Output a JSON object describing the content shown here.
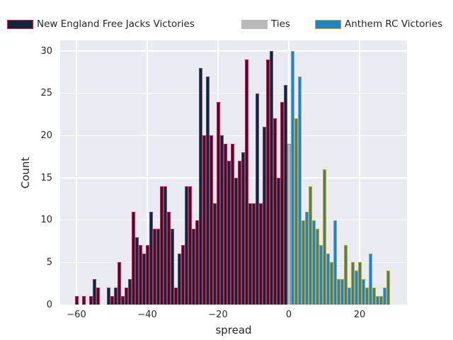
{
  "legend": {
    "items": [
      {
        "label": "New England Free Jacks Victories",
        "fill": "#16233c",
        "edge": "#c22b52"
      },
      {
        "label": "Ties",
        "fill": "#b9b9b9",
        "edge": "#b9b9b9"
      },
      {
        "label": "Anthem RC Victories",
        "fill": "#2183c2",
        "edge": "#d4a71e"
      }
    ]
  },
  "axes": {
    "xlabel": "spread",
    "ylabel": "Count",
    "x_ticks": [
      -60,
      -40,
      -20,
      0,
      20
    ],
    "y_ticks": [
      0,
      5,
      10,
      15,
      20,
      25,
      30
    ]
  },
  "colors": {
    "figure_bg": "#ffffff",
    "axes_bg": "#eaeaf2",
    "grid": "#ffffff",
    "text": "#262626",
    "free_jacks_fill": "#16233c",
    "free_jacks_edge": "#c22b52",
    "ties_fill": "#b9b9b9",
    "ties_edge": "#8a8a8a",
    "anthem_fill": "#2183c2",
    "anthem_edge": "#c3a42c"
  },
  "chart_data": {
    "type": "bar",
    "title": "",
    "xlabel": "spread",
    "ylabel": "Count",
    "bin_width": 1,
    "xlim": [
      -64.5,
      33.5
    ],
    "ylim": [
      0,
      31.3
    ],
    "grid": true,
    "legend_position": "top",
    "series": [
      {
        "name": "New England Free Jacks Victories",
        "x_start": -60,
        "counts": [
          1,
          0,
          1,
          0,
          1,
          3,
          2,
          0,
          0,
          2,
          1,
          2,
          5,
          1,
          2,
          3,
          11,
          8,
          7,
          6,
          7,
          11,
          9,
          9,
          14,
          14,
          11,
          9,
          2,
          6,
          7,
          14,
          14,
          9,
          10,
          28,
          20,
          27,
          20,
          12,
          24,
          20,
          19,
          17,
          19,
          15,
          17,
          18,
          29,
          12,
          12,
          25,
          12,
          21,
          29,
          30,
          22,
          15,
          24,
          26
        ]
      },
      {
        "name": "Ties",
        "x_start": 0,
        "counts": [
          19
        ]
      },
      {
        "name": "Anthem RC Victories",
        "x_start": 1,
        "counts": [
          30,
          22,
          27,
          10,
          11,
          14,
          10,
          9,
          7,
          16,
          6,
          5,
          10,
          3,
          3,
          7,
          2,
          5,
          4,
          5,
          3,
          2,
          6,
          2,
          1,
          1,
          2,
          4
        ]
      }
    ]
  }
}
